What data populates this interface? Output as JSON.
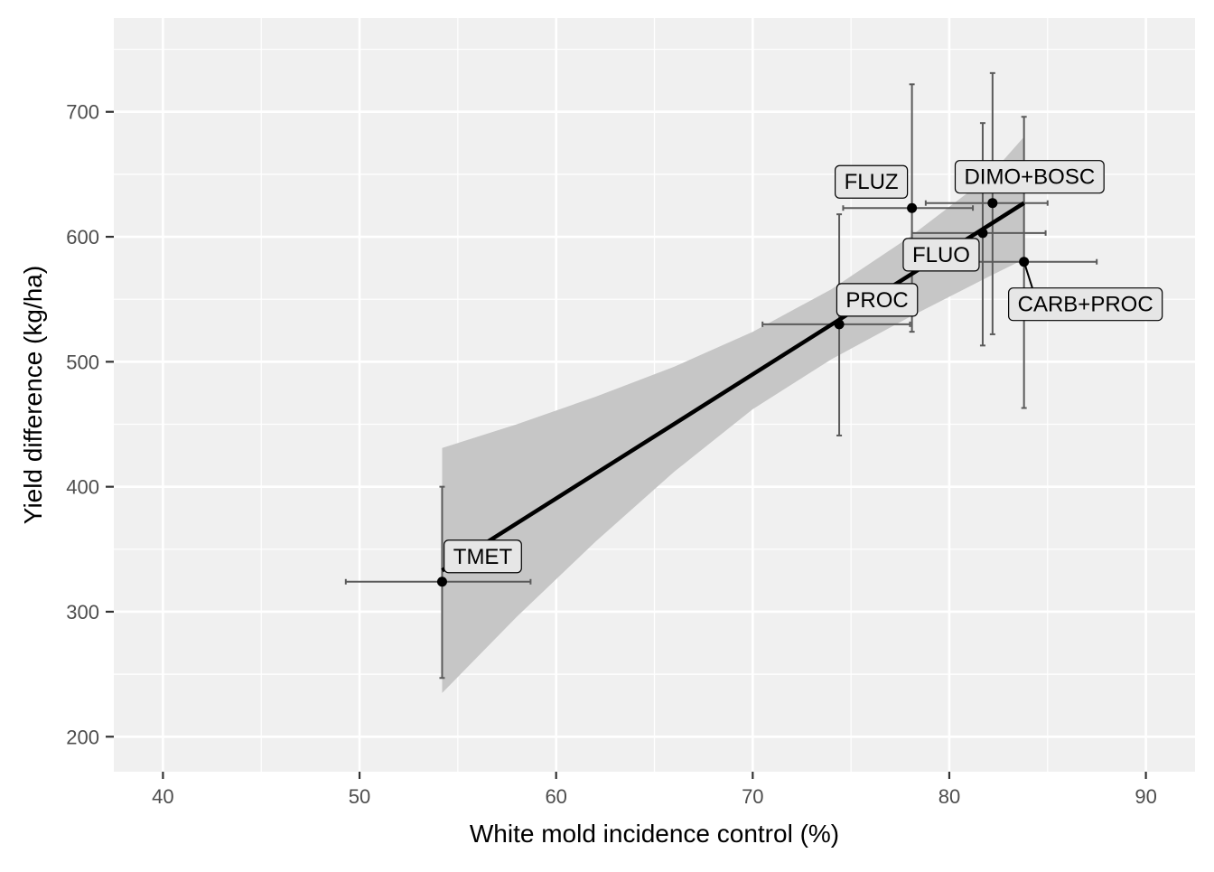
{
  "chart_data": {
    "type": "scatter",
    "title": "",
    "xlabel": "White mold incidence control (%)",
    "ylabel": "Yield difference (kg/ha)",
    "xlim": [
      37.5,
      92.5
    ],
    "ylim": [
      172,
      775
    ],
    "x_ticks": [
      40,
      50,
      60,
      70,
      80,
      90
    ],
    "y_ticks": [
      200,
      300,
      400,
      500,
      600,
      700
    ],
    "x_tick_labels": [
      "40",
      "50",
      "60",
      "70",
      "80",
      "90"
    ],
    "y_tick_labels": [
      "200",
      "300",
      "400",
      "500",
      "600",
      "700"
    ],
    "grid": true,
    "legend": "none",
    "points": [
      {
        "label": "TMET",
        "x": 54.2,
        "y": 324,
        "x_err": [
          49.3,
          58.7
        ],
        "y_err": [
          247,
          400
        ]
      },
      {
        "label": "PROC",
        "x": 74.4,
        "y": 530,
        "x_err": [
          70.5,
          78.0
        ],
        "y_err": [
          441,
          618
        ]
      },
      {
        "label": "FLUZ",
        "x": 78.1,
        "y": 623,
        "x_err": [
          74.6,
          81.2
        ],
        "y_err": [
          524,
          722
        ]
      },
      {
        "label": "FLUO",
        "x": 81.7,
        "y": 603,
        "x_err": [
          78.1,
          84.9
        ],
        "y_err": [
          513,
          691
        ]
      },
      {
        "label": "DIMO+BOSC",
        "x": 82.2,
        "y": 627,
        "x_err": [
          78.8,
          85.0
        ],
        "y_err": [
          522,
          731
        ]
      },
      {
        "label": "CARB+PROC",
        "x": 83.8,
        "y": 580,
        "x_err": [
          80.0,
          87.5
        ],
        "y_err": [
          463,
          696
        ]
      }
    ],
    "fit_line": {
      "x": [
        54.2,
        83.8
      ],
      "y": [
        333,
        627
      ]
    },
    "confidence_band": {
      "x": [
        54.2,
        58,
        62,
        66,
        70,
        74,
        78,
        82,
        83.8
      ],
      "upper": [
        431,
        450,
        472,
        496,
        524,
        558,
        600,
        648,
        680
      ],
      "lower": [
        235,
        296,
        356,
        412,
        462,
        502,
        536,
        568,
        582
      ]
    },
    "colors": {
      "panel_background": "#f0f0f0",
      "grid": "#ffffff",
      "band": "#c6c6c6",
      "fit_line": "#000000",
      "error_bar": "#5a5a5a",
      "point": "#000000",
      "label_fill": "#e6e6e6"
    }
  }
}
